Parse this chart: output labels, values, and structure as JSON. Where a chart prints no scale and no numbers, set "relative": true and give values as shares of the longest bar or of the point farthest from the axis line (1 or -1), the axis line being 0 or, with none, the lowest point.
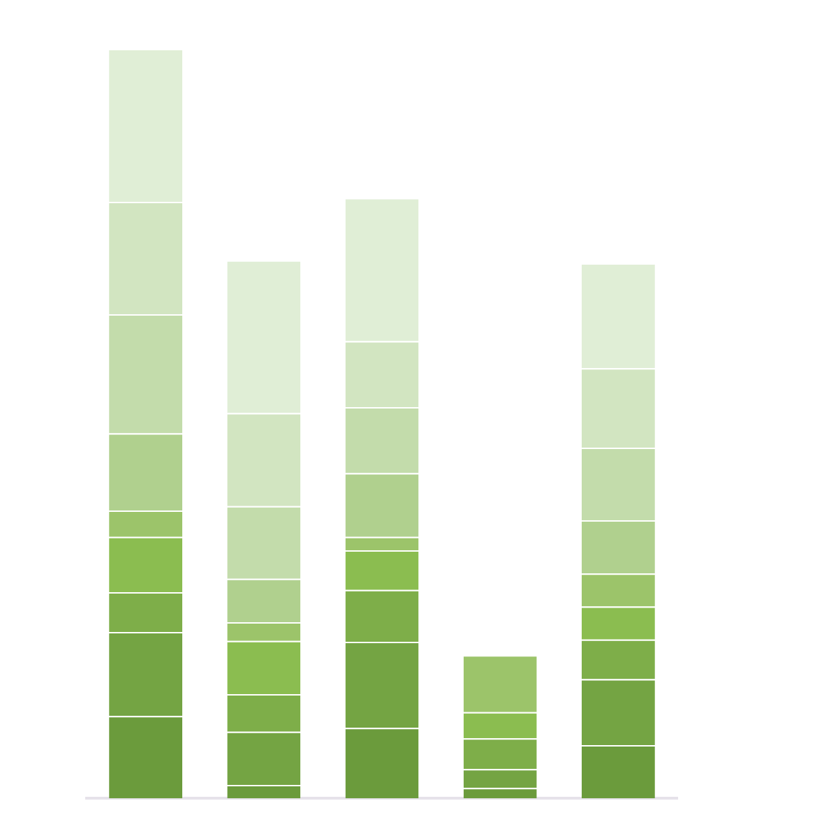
{
  "chart_data": {
    "type": "bar",
    "stacked": true,
    "relative": true,
    "categories": [
      null,
      null,
      null,
      null,
      null
    ],
    "series": [
      {
        "color": "#6b9b3c",
        "values": [
          0.11,
          0.018,
          0.094,
          0.014,
          0.071
        ]
      },
      {
        "color": "#74a443",
        "values": [
          0.112,
          0.071,
          0.115,
          0.025,
          0.088
        ]
      },
      {
        "color": "#7eae49",
        "values": [
          0.053,
          0.05,
          0.069,
          0.041,
          0.053
        ]
      },
      {
        "color": "#8bbd50",
        "values": [
          0.074,
          0.071,
          0.053,
          0.035,
          0.044
        ]
      },
      {
        "color": "#9cc46a",
        "values": [
          0.035,
          0.025,
          0.018,
          0.076,
          0.044
        ]
      },
      {
        "color": "#b0d08e",
        "values": [
          0.103,
          0.058,
          0.085,
          null,
          0.071
        ]
      },
      {
        "color": "#c3dcab",
        "values": [
          0.159,
          0.097,
          0.088,
          null,
          0.097
        ]
      },
      {
        "color": "#d2e5c1",
        "values": [
          0.15,
          0.124,
          0.088,
          null,
          0.106
        ]
      },
      {
        "color": "#e0eed6",
        "values": [
          0.204,
          0.204,
          0.191,
          null,
          0.14
        ]
      }
    ],
    "legend": false
  }
}
